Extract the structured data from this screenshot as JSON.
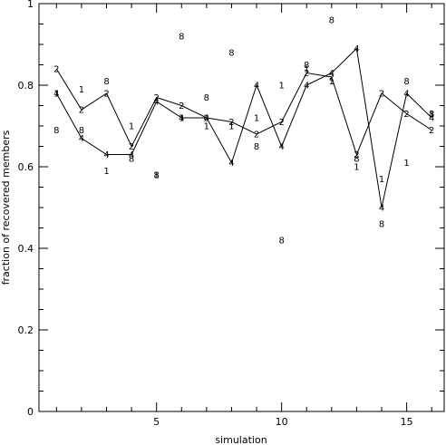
{
  "chart_data": {
    "type": "line",
    "xlabel": "simulation",
    "ylabel": "fraction of recovered members",
    "xlim": [
      0.3,
      16.5
    ],
    "ylim": [
      0,
      1
    ],
    "xticks": [
      5,
      10,
      15
    ],
    "yticks": [
      0,
      0.2,
      0.4,
      0.6,
      0.8,
      1
    ],
    "ytick_labels": [
      "0",
      "0.2",
      "0.4",
      "0.6",
      "0.8",
      "1"
    ],
    "grid": false,
    "x": [
      1,
      2,
      3,
      4,
      5,
      6,
      7,
      8,
      9,
      10,
      11,
      12,
      13,
      14,
      15,
      16
    ],
    "series": [
      {
        "name": "2",
        "marker": "2",
        "line": true,
        "values": [
          0.84,
          0.74,
          0.78,
          0.65,
          0.77,
          0.75,
          0.72,
          0.71,
          0.68,
          0.71,
          0.83,
          0.82,
          0.63,
          0.78,
          0.73,
          0.69
        ]
      },
      {
        "name": "4",
        "marker": "4",
        "line": true,
        "values": [
          0.78,
          0.67,
          0.63,
          0.63,
          0.76,
          0.72,
          0.72,
          0.61,
          0.8,
          0.65,
          0.8,
          0.83,
          0.89,
          0.5,
          0.78,
          0.72
        ]
      },
      {
        "name": "1",
        "marker": "1",
        "line": false,
        "values": [
          0.78,
          0.79,
          0.59,
          0.7,
          0.58,
          0.72,
          0.7,
          0.7,
          0.72,
          0.8,
          0.84,
          0.81,
          0.6,
          0.57,
          0.61,
          0.73
        ]
      },
      {
        "name": "8",
        "marker": "8",
        "line": false,
        "values": [
          0.69,
          0.69,
          0.81,
          0.62,
          0.58,
          0.92,
          0.77,
          0.88,
          0.65,
          0.42,
          0.85,
          0.96,
          0.62,
          0.46,
          0.81,
          0.73
        ]
      }
    ]
  }
}
